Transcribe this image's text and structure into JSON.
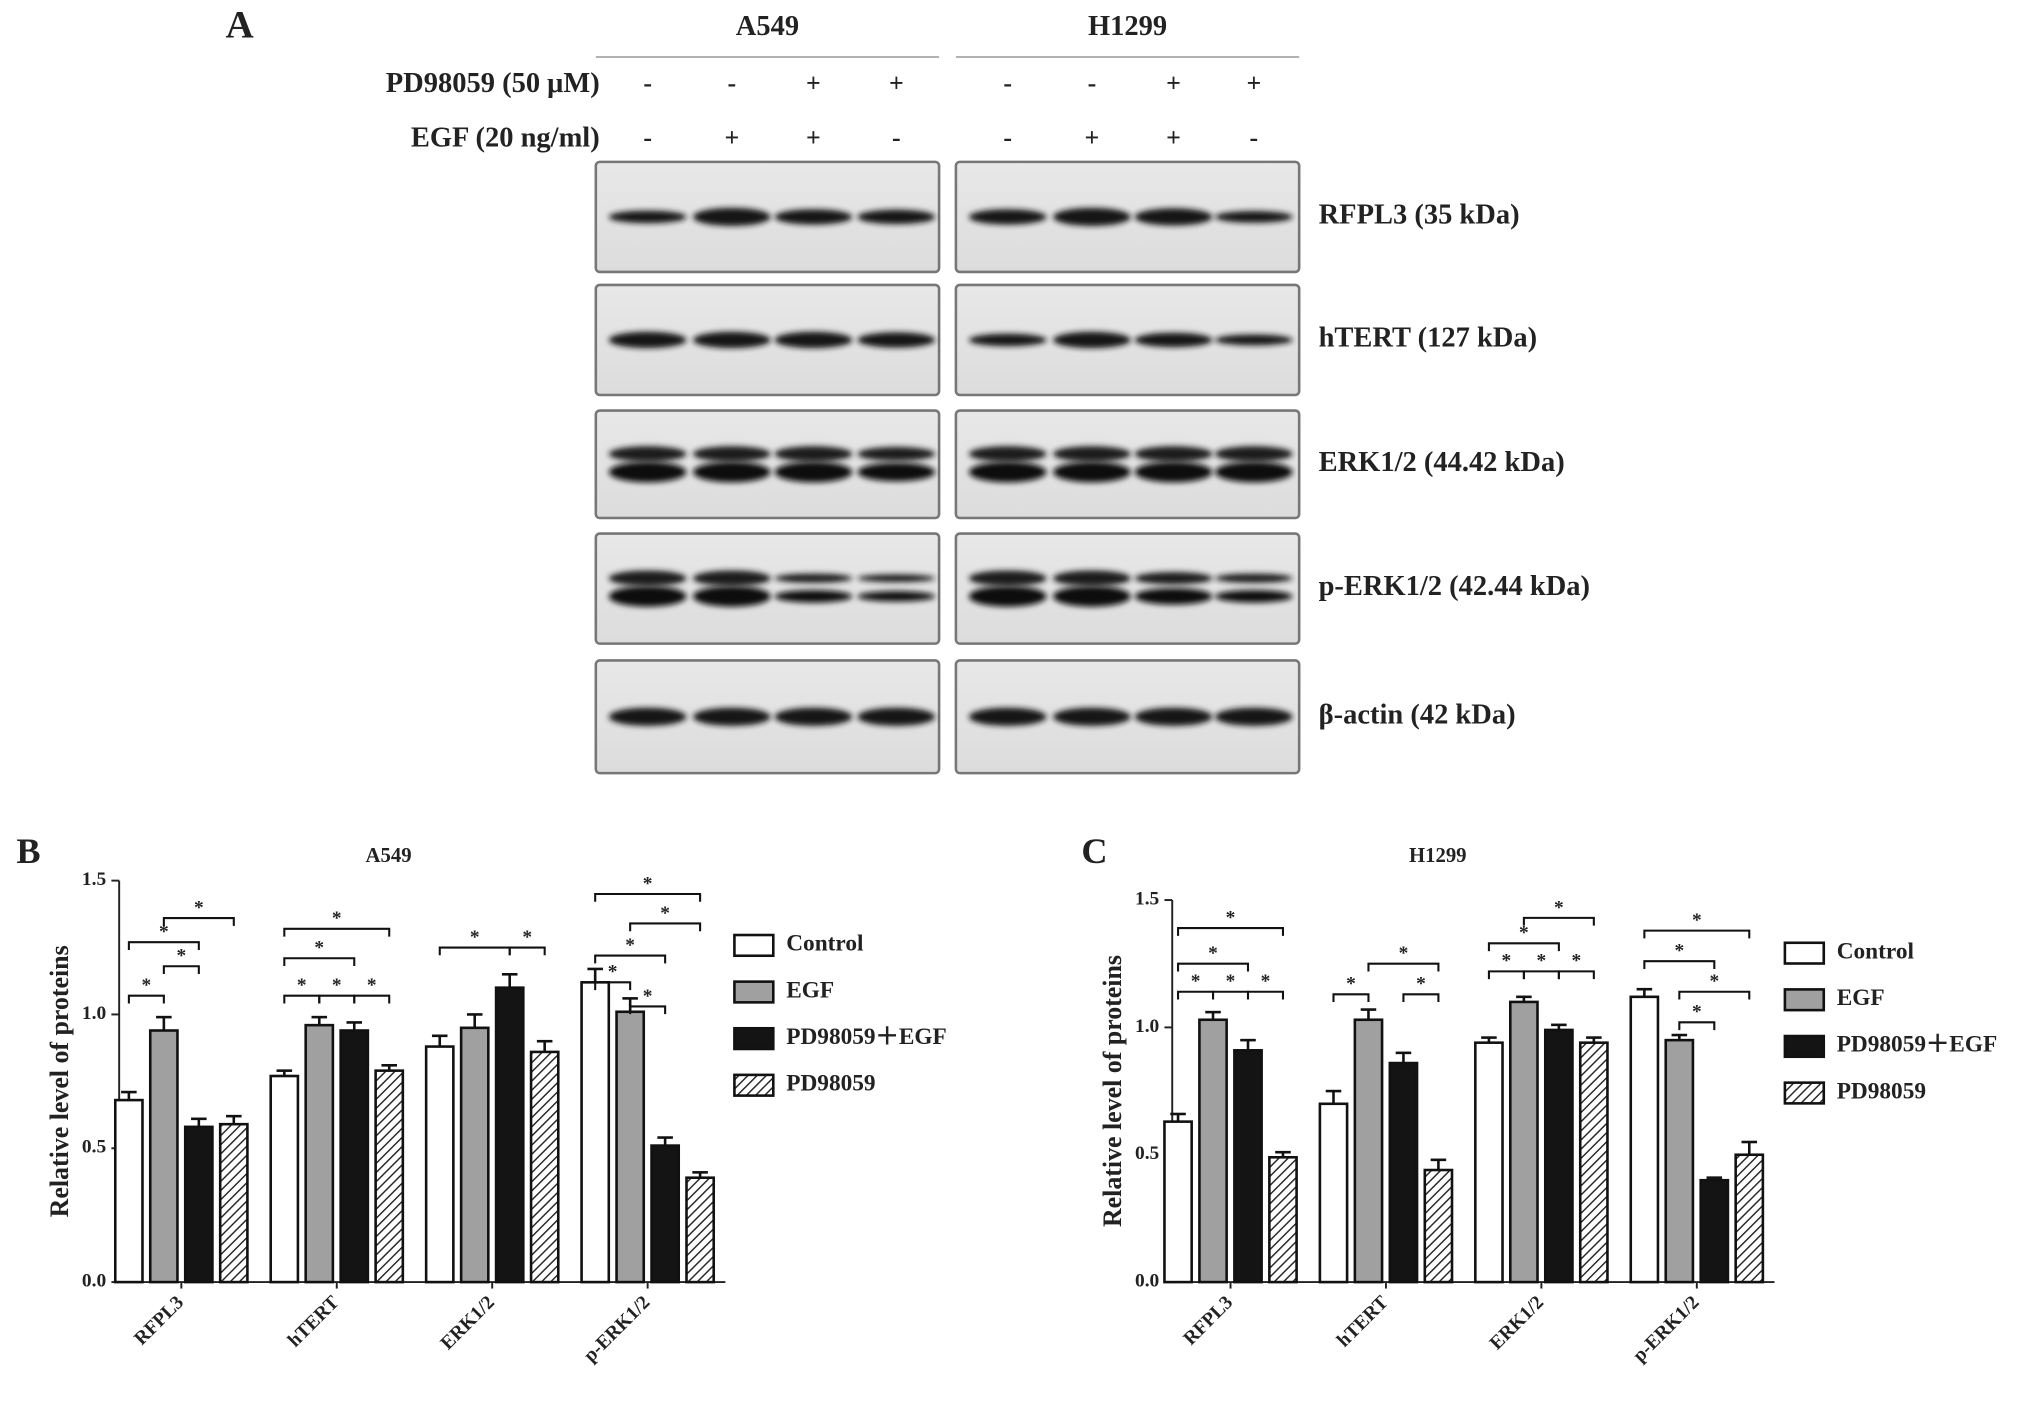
{
  "panel_a": {
    "label": "A",
    "cell_lines": [
      "A549",
      "H1299"
    ],
    "treatments": [
      {
        "name": "PD98059 (50 μM)",
        "signs": [
          "-",
          "-",
          "+",
          "+",
          "-",
          "-",
          "+",
          "+"
        ]
      },
      {
        "name": "EGF (20 ng/ml)",
        "signs": [
          "-",
          "+",
          "+",
          "-",
          "-",
          "+",
          "+",
          "-"
        ]
      }
    ],
    "proteins": [
      "RFPL3 (35 kDa)",
      "hTERT (127 kDa)",
      "ERK1/2 (44.42 kDa)",
      "p-ERK1/2 (42.44 kDa)",
      "β-actin (42 kDa)"
    ]
  },
  "chart_data": [
    {
      "type": "bar",
      "panel": "B",
      "title": "A549",
      "y_label": "Relative level of proteins",
      "categories": [
        "RFPL3",
        "hTERT",
        "ERK1/2",
        "p-ERK1/2"
      ],
      "series": [
        {
          "name": "Control",
          "color": "#ffffff",
          "values": [
            0.68,
            0.77,
            0.88,
            1.12
          ],
          "errors": [
            0.03,
            0.02,
            0.04,
            0.05
          ]
        },
        {
          "name": "EGF",
          "color": "#a0a0a0",
          "values": [
            0.94,
            0.96,
            0.95,
            1.01
          ],
          "errors": [
            0.05,
            0.03,
            0.05,
            0.05
          ]
        },
        {
          "name": "PD98059＋EGF",
          "color": "#141414",
          "values": [
            0.58,
            0.94,
            1.1,
            0.51
          ],
          "errors": [
            0.03,
            0.03,
            0.05,
            0.03
          ]
        },
        {
          "name": "PD98059",
          "color": "#ffffff",
          "pattern": "hatch",
          "values": [
            0.59,
            0.79,
            0.86,
            0.39
          ],
          "errors": [
            0.03,
            0.02,
            0.04,
            0.02
          ]
        }
      ],
      "ylim": [
        0,
        1.5
      ],
      "yticks": [
        {
          "value": 0,
          "label": "0.0"
        },
        {
          "value": 0.5,
          "label": "0.5"
        },
        {
          "value": 1,
          "label": "1.0"
        },
        {
          "value": 1.5,
          "label": "1.5"
        }
      ],
      "brackets": [
        {
          "category": 0,
          "bars": [
            0,
            1
          ],
          "y": 1.07,
          "label": "*"
        },
        {
          "category": 0,
          "bars": [
            1,
            2
          ],
          "y": 1.18,
          "label": "*"
        },
        {
          "category": 0,
          "bars": [
            0,
            2
          ],
          "y": 1.27,
          "label": "*"
        },
        {
          "category": 0,
          "bars": [
            1,
            3
          ],
          "y": 1.36,
          "label": "*"
        },
        {
          "category": 1,
          "bars": [
            0,
            1
          ],
          "y": 1.07,
          "label": "*"
        },
        {
          "category": 1,
          "bars": [
            1,
            2
          ],
          "y": 1.07,
          "label": "*"
        },
        {
          "category": 1,
          "bars": [
            2,
            3
          ],
          "y": 1.07,
          "label": "*"
        },
        {
          "category": 1,
          "bars": [
            0,
            2
          ],
          "y": 1.21,
          "label": "*"
        },
        {
          "category": 1,
          "bars": [
            0,
            3
          ],
          "y": 1.32,
          "label": "*"
        },
        {
          "category": 2,
          "bars": [
            0,
            2
          ],
          "y": 1.25,
          "label": "*"
        },
        {
          "category": 2,
          "bars": [
            2,
            3
          ],
          "y": 1.25,
          "label": "*"
        },
        {
          "category": 3,
          "bars": [
            1,
            2
          ],
          "y": 1.03,
          "label": "*"
        },
        {
          "category": 3,
          "bars": [
            0,
            1
          ],
          "y": 1.12,
          "label": "*"
        },
        {
          "category": 3,
          "bars": [
            0,
            2
          ],
          "y": 1.22,
          "label": "*"
        },
        {
          "category": 3,
          "bars": [
            1,
            3
          ],
          "y": 1.34,
          "label": "*"
        },
        {
          "category": 3,
          "bars": [
            0,
            3
          ],
          "y": 1.45,
          "label": "*"
        }
      ]
    },
    {
      "type": "bar",
      "panel": "C",
      "title": "H1299",
      "y_label": "Relative level of proteins",
      "categories": [
        "RFPL3",
        "hTERT",
        "ERK1/2",
        "p-ERK1/2"
      ],
      "series": [
        {
          "name": "Control",
          "color": "#ffffff",
          "values": [
            0.63,
            0.7,
            0.94,
            1.12
          ],
          "errors": [
            0.03,
            0.05,
            0.02,
            0.03
          ]
        },
        {
          "name": "EGF",
          "color": "#a0a0a0",
          "values": [
            1.03,
            1.03,
            1.1,
            0.95
          ],
          "errors": [
            0.03,
            0.04,
            0.02,
            0.02
          ]
        },
        {
          "name": "PD98059＋EGF",
          "color": "#141414",
          "values": [
            0.91,
            0.86,
            0.99,
            0.4
          ],
          "errors": [
            0.04,
            0.04,
            0.02,
            0.01
          ]
        },
        {
          "name": "PD98059",
          "color": "#ffffff",
          "pattern": "hatch",
          "values": [
            0.49,
            0.44,
            0.94,
            0.5
          ],
          "errors": [
            0.02,
            0.04,
            0.02,
            0.05
          ]
        }
      ],
      "ylim": [
        0,
        1.5
      ],
      "yticks": [
        {
          "value": 0,
          "label": "0.0"
        },
        {
          "value": 0.5,
          "label": "0.5"
        },
        {
          "value": 1,
          "label": "1.0"
        },
        {
          "value": 1.5,
          "label": "1.5"
        }
      ],
      "brackets": [
        {
          "category": 0,
          "bars": [
            0,
            1
          ],
          "y": 1.14,
          "label": "*"
        },
        {
          "category": 0,
          "bars": [
            1,
            2
          ],
          "y": 1.14,
          "label": "*"
        },
        {
          "category": 0,
          "bars": [
            2,
            3
          ],
          "y": 1.14,
          "label": "*"
        },
        {
          "category": 0,
          "bars": [
            0,
            2
          ],
          "y": 1.25,
          "label": "*"
        },
        {
          "category": 0,
          "bars": [
            0,
            3
          ],
          "y": 1.39,
          "label": "*"
        },
        {
          "category": 1,
          "bars": [
            0,
            1
          ],
          "y": 1.13,
          "label": "*"
        },
        {
          "category": 1,
          "bars": [
            2,
            3
          ],
          "y": 1.13,
          "label": "*"
        },
        {
          "category": 1,
          "bars": [
            1,
            3
          ],
          "y": 1.25,
          "label": "*"
        },
        {
          "category": 2,
          "bars": [
            0,
            1
          ],
          "y": 1.22,
          "label": "*"
        },
        {
          "category": 2,
          "bars": [
            1,
            2
          ],
          "y": 1.22,
          "label": "*"
        },
        {
          "category": 2,
          "bars": [
            2,
            3
          ],
          "y": 1.22,
          "label": "*"
        },
        {
          "category": 2,
          "bars": [
            0,
            2
          ],
          "y": 1.33,
          "label": "*"
        },
        {
          "category": 2,
          "bars": [
            1,
            3
          ],
          "y": 1.43,
          "label": "*"
        },
        {
          "category": 3,
          "bars": [
            1,
            2
          ],
          "y": 1.02,
          "label": "*"
        },
        {
          "category": 3,
          "bars": [
            1,
            3
          ],
          "y": 1.14,
          "label": "*"
        },
        {
          "category": 3,
          "bars": [
            0,
            2
          ],
          "y": 1.26,
          "label": "*"
        },
        {
          "category": 3,
          "bars": [
            0,
            3
          ],
          "y": 1.38,
          "label": "*"
        }
      ]
    }
  ]
}
